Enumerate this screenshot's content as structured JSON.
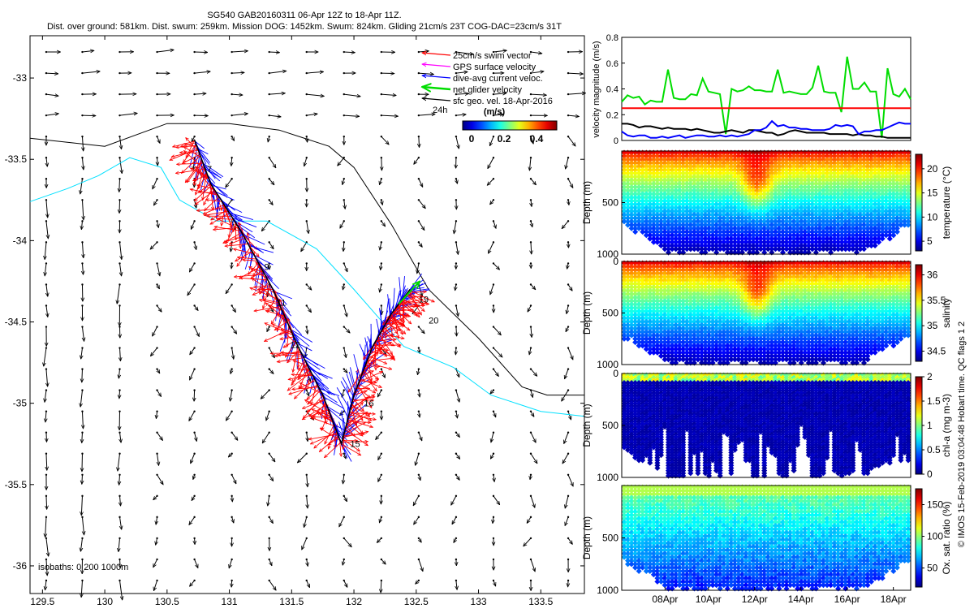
{
  "header": {
    "line1": "SG540 GAB20160311 06-Apr 12Z to 18-Apr 11Z.",
    "line2": "Dist. over ground: 581km. Dist. swum: 259km. Mission DOG: 1452km. Swum: 824km. Gliding 21cm/s 23T COG-DAC=23cm/s 31T"
  },
  "footer_right": "© IMOS 15-Feb-2019 03:04:48 Hobart time. QC flags 1  2",
  "colors": {
    "swim": "#ff0000",
    "gps": "#ff00ff",
    "dac": "#0000ff",
    "net": "#00dd00",
    "geo": "#000000",
    "isobath200": "#00e0ff",
    "isobath1000": "#000000"
  },
  "chart_data": [
    {
      "type": "scatter",
      "title": "map",
      "xlabel": "",
      "ylabel": "",
      "xlim": [
        129.4,
        133.85
      ],
      "ylim": [
        -36.17,
        -32.74
      ],
      "xticks": [
        "129.5",
        "130",
        "130.5",
        "131",
        "131.5",
        "132",
        "132.5",
        "133",
        "133.5"
      ],
      "xtick_values": [
        129.5,
        130,
        130.5,
        131,
        131.5,
        132,
        132.5,
        133,
        133.5
      ],
      "yticks": [
        "-33",
        "-33.5",
        "-34",
        "-34.5",
        "-35",
        "-35.5",
        "-36"
      ],
      "ytick_values": [
        -33,
        -33.5,
        -34,
        -34.5,
        -35,
        -35.5,
        -36
      ],
      "legend": {
        "placement": "top-right",
        "items": [
          "25cm/s swim vector",
          "GPS surface velocity",
          "dive-avg current veloc.",
          "net glider velocity",
          "sfc geo. vel. 18-Apr-2016"
        ],
        "note": "24h",
        "colorbar_title": "(m/s)",
        "colorbar_ticks": [
          "0",
          "0.2",
          "0.4"
        ]
      },
      "isobath_label": "isobaths: 0   200   1000m",
      "track": {
        "x": [
          130.72,
          130.85,
          131.1,
          131.35,
          131.55,
          131.75,
          131.9,
          132.0,
          132.15,
          132.3,
          132.45
        ],
        "y": [
          -33.38,
          -33.65,
          -33.95,
          -34.3,
          -34.65,
          -34.95,
          -35.25,
          -34.95,
          -34.65,
          -34.45,
          -34.3
        ]
      },
      "day_labels": [
        {
          "t": "7",
          "x": 130.82,
          "y": -33.58
        },
        {
          "t": "9",
          "x": 131.28,
          "y": -34.18
        },
        {
          "t": "11",
          "x": 131.38,
          "y": -34.4
        },
        {
          "t": "12",
          "x": 131.49,
          "y": -34.66
        },
        {
          "t": "15",
          "x": 131.97,
          "y": -35.27
        },
        {
          "t": "16",
          "x": 132.08,
          "y": -35.02
        },
        {
          "t": "19",
          "x": 132.52,
          "y": -34.38
        },
        {
          "t": "20",
          "x": 132.6,
          "y": -34.51
        }
      ],
      "isobath_1000": {
        "x": [
          129.4,
          130.0,
          130.5,
          131.0,
          131.4,
          131.8,
          132.0,
          132.3,
          132.6,
          133.0,
          133.35,
          133.55,
          133.85
        ],
        "y": [
          -33.37,
          -33.42,
          -33.28,
          -33.28,
          -33.32,
          -33.42,
          -33.55,
          -33.9,
          -34.3,
          -34.6,
          -34.9,
          -34.95,
          -34.95
        ]
      },
      "isobath_200": {
        "x": [
          129.4,
          129.7,
          129.95,
          130.2,
          130.45,
          130.6,
          130.9,
          131.3,
          131.7,
          132.0,
          132.4,
          132.8,
          133.1,
          133.5,
          133.85
        ],
        "y": [
          -33.76,
          -33.68,
          -33.6,
          -33.49,
          -33.55,
          -33.75,
          -33.88,
          -33.88,
          -34.05,
          -34.3,
          -34.65,
          -34.78,
          -34.95,
          -35.05,
          -35.08
        ]
      },
      "geo_vectors": {
        "grid_x": [
          129.53,
          129.82,
          130.12,
          130.42,
          130.72,
          131.02,
          131.32,
          131.62,
          131.92,
          132.22,
          132.52,
          132.82,
          133.12,
          133.42,
          133.72
        ],
        "grid_y": [
          -32.84,
          -32.97,
          -33.1,
          -33.23,
          -33.36,
          -33.49,
          -33.62,
          -33.75,
          -33.88,
          -34.01,
          -34.14,
          -34.27,
          -34.4,
          -34.53,
          -34.66,
          -34.79,
          -34.92,
          -35.05,
          -35.18,
          -35.31,
          -35.44,
          -35.57,
          -35.7,
          -35.83,
          -35.96,
          -36.09
        ]
      }
    },
    {
      "type": "line",
      "title": "velocity",
      "xlabel": "",
      "ylabel": "velocity magnitude (m/s)",
      "ylim": [
        0,
        0.8
      ],
      "yticks": [
        "0",
        "0.2",
        "0.4",
        "0.6",
        "0.8"
      ],
      "ytick_values": [
        0,
        0.2,
        0.4,
        0.6,
        0.8
      ],
      "x": [
        0.0,
        0.02,
        0.04,
        0.06,
        0.08,
        0.1,
        0.12,
        0.14,
        0.16,
        0.18,
        0.2,
        0.22,
        0.24,
        0.26,
        0.28,
        0.3,
        0.32,
        0.34,
        0.36,
        0.38,
        0.4,
        0.42,
        0.44,
        0.46,
        0.48,
        0.5,
        0.52,
        0.54,
        0.56,
        0.58,
        0.6,
        0.62,
        0.64,
        0.66,
        0.68,
        0.7,
        0.72,
        0.74,
        0.76,
        0.78,
        0.8,
        0.82,
        0.84,
        0.86,
        0.88,
        0.9,
        0.92,
        0.94,
        0.96,
        0.98,
        1.0
      ],
      "series": [
        {
          "name": "",
          "color": "#00dd00",
          "values": [
            0.3,
            0.35,
            0.33,
            0.34,
            0.28,
            0.31,
            0.3,
            0.3,
            0.55,
            0.33,
            0.32,
            0.32,
            0.36,
            0.35,
            0.48,
            0.38,
            0.37,
            0.36,
            0.05,
            0.4,
            0.38,
            0.39,
            0.42,
            0.39,
            0.39,
            0.38,
            0.38,
            0.55,
            0.37,
            0.38,
            0.37,
            0.36,
            0.36,
            0.41,
            0.58,
            0.38,
            0.37,
            0.37,
            0.22,
            0.65,
            0.4,
            0.4,
            0.45,
            0.38,
            0.38,
            0.02,
            0.56,
            0.36,
            0.34,
            0.4,
            0.32
          ]
        },
        {
          "name": "",
          "color": "#000000",
          "values": [
            0.13,
            0.13,
            0.12,
            0.1,
            0.11,
            0.11,
            0.1,
            0.09,
            0.1,
            0.09,
            0.09,
            0.09,
            0.08,
            0.09,
            0.08,
            0.07,
            0.06,
            0.06,
            0.07,
            0.08,
            0.07,
            0.06,
            0.08,
            0.08,
            0.07,
            0.06,
            0.06,
            0.04,
            0.05,
            0.07,
            0.08,
            0.07,
            0.06,
            0.06,
            0.06,
            0.06,
            0.05,
            0.05,
            0.05,
            0.05,
            0.04,
            0.05,
            0.04,
            0.04,
            0.03,
            0.03,
            0.02,
            0.02,
            0.02,
            0.02,
            0.02
          ]
        },
        {
          "name": "",
          "color": "#0000ff",
          "values": [
            0.07,
            0.04,
            0.03,
            0.04,
            0.04,
            0.02,
            0.02,
            0.03,
            0.02,
            0.03,
            0.04,
            0.02,
            0.03,
            0.04,
            0.04,
            0.03,
            0.03,
            0.04,
            0.03,
            0.04,
            0.03,
            0.04,
            0.05,
            0.08,
            0.08,
            0.1,
            0.15,
            0.11,
            0.12,
            0.1,
            0.1,
            0.09,
            0.09,
            0.08,
            0.08,
            0.08,
            0.09,
            0.12,
            0.11,
            0.12,
            0.11,
            0.05,
            0.07,
            0.07,
            0.08,
            0.08,
            0.1,
            0.12,
            0.14,
            0.13,
            0.13
          ]
        },
        {
          "name": "",
          "color": "#ff0000",
          "values": [
            0.25,
            0.25,
            0.25,
            0.25,
            0.25,
            0.25,
            0.25,
            0.25,
            0.25,
            0.25,
            0.25,
            0.25,
            0.25,
            0.25,
            0.25,
            0.25,
            0.25,
            0.25,
            0.25,
            0.25,
            0.25,
            0.25,
            0.25,
            0.25,
            0.25,
            0.25,
            0.25,
            0.25,
            0.25,
            0.25,
            0.25,
            0.25,
            0.25,
            0.25,
            0.25,
            0.25,
            0.25,
            0.25,
            0.25,
            0.25,
            0.25,
            0.25,
            0.25,
            0.25,
            0.25,
            0.25,
            0.25,
            0.25,
            0.25,
            0.25,
            0.25
          ]
        }
      ]
    },
    {
      "type": "heatmap",
      "title": "temperature",
      "xlabel": "",
      "ylabel": "Depth (m)",
      "colorbar_label": "temperature (°C)",
      "ylim": [
        0,
        1000
      ],
      "yticks": [
        "500",
        "1000"
      ],
      "ytick_values": [
        500,
        1000
      ],
      "clim": [
        3,
        23
      ],
      "cticks": [
        "5",
        "10",
        "15",
        "20"
      ],
      "ctick_values": [
        5,
        10,
        15,
        20
      ],
      "surface": 21,
      "deep": 4
    },
    {
      "type": "heatmap",
      "title": "salinity",
      "xlabel": "",
      "ylabel": "Depth (m)",
      "colorbar_label": "salinity",
      "ylim": [
        0,
        1000
      ],
      "yticks": [
        "0",
        "500",
        "1000"
      ],
      "ytick_values": [
        0,
        500,
        1000
      ],
      "clim": [
        34.3,
        36.2
      ],
      "cticks": [
        "34.5",
        "35",
        "35.5",
        "36"
      ],
      "ctick_values": [
        34.5,
        35,
        35.5,
        36
      ],
      "surface": 36.0,
      "deep": 34.4
    },
    {
      "type": "heatmap",
      "title": "chl-a",
      "xlabel": "",
      "ylabel": "Depth (m)",
      "colorbar_label": "chl-a (mg m-3)",
      "ylim": [
        0,
        1000
      ],
      "yticks": [
        "0",
        "500",
        "1000"
      ],
      "ytick_values": [
        0,
        500,
        1000
      ],
      "clim": [
        0,
        2
      ],
      "cticks": [
        "0",
        "0.5",
        "1",
        "1.5",
        "2"
      ],
      "ctick_values": [
        0,
        0.5,
        1,
        1.5,
        2
      ],
      "surface": 0.6,
      "deep": 0.02
    },
    {
      "type": "heatmap",
      "title": "oxygen",
      "xlabel": "",
      "ylabel": "Depth (m)",
      "colorbar_label": "Ox. sat. ratio (%)",
      "ylim": [
        0,
        1000
      ],
      "yticks": [
        "500",
        "1000"
      ],
      "ytick_values": [
        500,
        1000
      ],
      "clim": [
        20,
        175
      ],
      "cticks": [
        "50",
        "100",
        "150"
      ],
      "ctick_values": [
        50,
        100,
        150
      ],
      "surface": 110,
      "deep": 45,
      "xticks": [
        "08Apr",
        "10Apr",
        "12Apr",
        "14Apr",
        "16Apr",
        "18Apr"
      ],
      "xtick_values": [
        0.15,
        0.3,
        0.46,
        0.62,
        0.78,
        0.94
      ]
    }
  ]
}
